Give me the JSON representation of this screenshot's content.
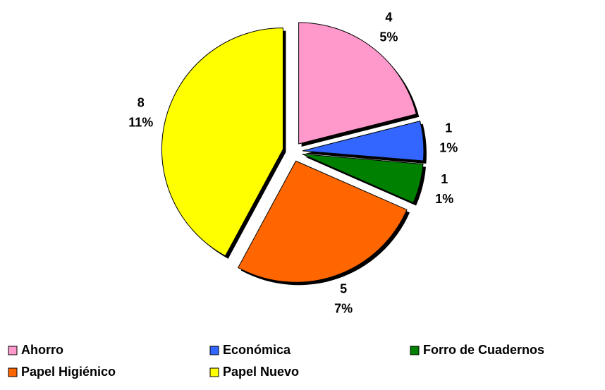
{
  "chart_data": {
    "type": "pie",
    "categories": [
      "Ahorro",
      "Económica",
      "Forro de Cuadernos",
      "Papel Higiénico",
      "Papel Nuevo"
    ],
    "values": [
      4,
      1,
      1,
      5,
      8
    ],
    "percent_labels": [
      "5%",
      "1%",
      "1%",
      "7%",
      "11%"
    ],
    "colors": [
      "#ff99cc",
      "#3366ff",
      "#008000",
      "#ff6600",
      "#ffff00"
    ],
    "legend": "bottom"
  }
}
